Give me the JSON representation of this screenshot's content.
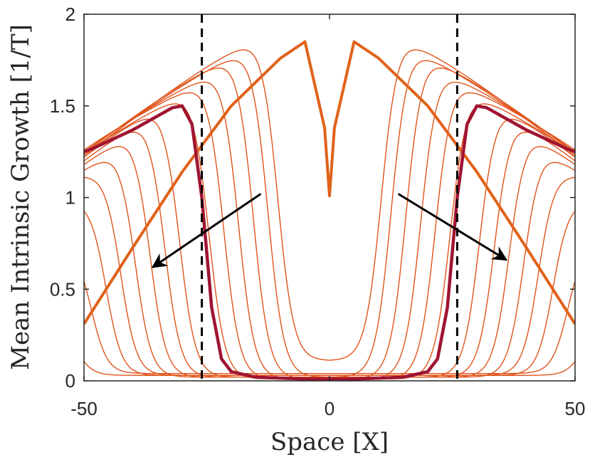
{
  "chart_data": {
    "type": "line",
    "title": "",
    "xlabel": "Space [X]",
    "ylabel": "Mean Intrinsic Growth [1/T]",
    "xlim": [
      -50,
      50
    ],
    "ylim": [
      0,
      2
    ],
    "x_ticks": [
      "-50",
      "0",
      "50"
    ],
    "y_ticks": [
      "0",
      "0.5",
      "1",
      "1.5",
      "2"
    ],
    "grid": false,
    "legend": "none",
    "colors": {
      "thin": "#e0541c",
      "initial": "#e0621a",
      "final": "#a01432",
      "dashed": "#000000",
      "axis": "#262626"
    },
    "vertical_dashed_lines_x": [
      -26,
      26
    ],
    "arrows": [
      {
        "from": [
          -14,
          1.02
        ],
        "to": [
          -36,
          0.62
        ]
      },
      {
        "from": [
          14,
          1.02
        ],
        "to": [
          36,
          0.66
        ]
      }
    ],
    "series": [
      {
        "role": "initial-profile",
        "x": [
          -50,
          -40,
          -30,
          -20,
          -10,
          -5,
          -1,
          0,
          1,
          5,
          10,
          20,
          30,
          40,
          50
        ],
        "y": [
          0.31,
          0.73,
          1.14,
          1.5,
          1.76,
          1.85,
          1.38,
          1.01,
          1.38,
          1.85,
          1.76,
          1.5,
          1.14,
          0.73,
          0.31
        ]
      },
      {
        "role": "final-profile",
        "x": [
          -50,
          -48,
          -40,
          -32,
          -30,
          -28,
          -26,
          -24,
          -22,
          -20,
          -15,
          -5,
          0,
          5,
          15,
          20,
          22,
          24,
          26,
          28,
          30,
          32,
          40,
          48,
          50
        ],
        "y": [
          1.25,
          1.27,
          1.37,
          1.49,
          1.5,
          1.4,
          1.0,
          0.4,
          0.12,
          0.05,
          0.02,
          0.01,
          0.01,
          0.01,
          0.02,
          0.05,
          0.12,
          0.4,
          1.0,
          1.4,
          1.5,
          1.49,
          1.37,
          1.27,
          1.25
        ]
      },
      {
        "role": "intermediate",
        "center": 10.5,
        "peak": 1.86,
        "edge": 1.22,
        "floor": 0.11
      },
      {
        "role": "intermediate",
        "center": 12.5,
        "peak": 1.8,
        "edge": 1.23,
        "floor": 0.02
      },
      {
        "role": "intermediate",
        "center": 15.5,
        "peak": 1.76,
        "edge": 1.24,
        "floor": 0.01
      },
      {
        "role": "intermediate",
        "center": 18.5,
        "peak": 1.68,
        "edge": 1.25,
        "floor": 0.01
      },
      {
        "role": "intermediate",
        "center": 21.5,
        "peak": 1.62,
        "edge": 1.26,
        "floor": 0.01
      },
      {
        "role": "intermediate",
        "center": 24.5,
        "peak": 1.56,
        "edge": 1.24,
        "floor": 0.01
      },
      {
        "role": "intermediate",
        "center": 30.5,
        "peak": 1.48,
        "edge": 1.22,
        "floor": 0.02
      },
      {
        "role": "intermediate",
        "center": 33.5,
        "peak": 1.41,
        "edge": 1.2,
        "floor": 0.02
      },
      {
        "role": "intermediate",
        "center": 36.5,
        "peak": 1.33,
        "edge": 1.18,
        "floor": 0.02
      },
      {
        "role": "intermediate",
        "center": 39.5,
        "peak": 1.24,
        "edge": 1.15,
        "floor": 0.02
      },
      {
        "role": "intermediate",
        "center": 42.5,
        "peak": 1.13,
        "edge": 1.12,
        "floor": 0.03
      },
      {
        "role": "intermediate",
        "center": 45.5,
        "peak": 0.98,
        "edge": 0.98,
        "floor": 0.03
      },
      {
        "role": "intermediate",
        "center": 48.5,
        "peak": 0.74,
        "edge": 0.74,
        "floor": 0.04
      },
      {
        "role": "intermediate",
        "center": 51.5,
        "peak": 0.3,
        "edge": 0.3,
        "floor": 0.03
      }
    ]
  }
}
